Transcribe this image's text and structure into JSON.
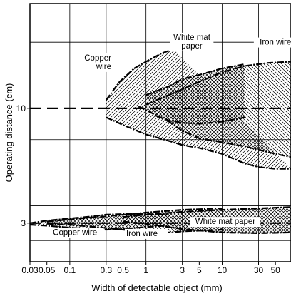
{
  "chart_data": {
    "type": "area",
    "title": "",
    "xlabel": "Width of detectable object (mm)",
    "ylabel": "Operating distance (cm)",
    "x_scale": "log",
    "y_scale": "log",
    "xlim": [
      0.03,
      80
    ],
    "ylim": [
      2,
      30
    ],
    "grid": true,
    "x_ticks": [
      {
        "value": 0.03,
        "label": "0.03"
      },
      {
        "value": 0.05,
        "label": "0.05"
      },
      {
        "value": 0.1,
        "label": "0.1"
      },
      {
        "value": 0.3,
        "label": "0.3"
      },
      {
        "value": 0.5,
        "label": "0.5"
      },
      {
        "value": 1,
        "label": "1"
      },
      {
        "value": 3,
        "label": "3"
      },
      {
        "value": 5,
        "label": "5"
      },
      {
        "value": 10,
        "label": "10"
      },
      {
        "value": 30,
        "label": "30"
      },
      {
        "value": 50,
        "label": "50"
      }
    ],
    "y_ticks": [
      {
        "value": 3,
        "label": "3"
      },
      {
        "value": 10,
        "label": "10"
      }
    ],
    "x_gridlines": [
      0.03,
      0.1,
      0.3,
      1,
      3,
      10,
      30
    ],
    "y_gridlines": [
      2.5,
      3.6,
      7.2,
      20
    ],
    "reference_lines": [
      {
        "y": 10,
        "style": "dashed"
      },
      {
        "y": 3,
        "style": "dashed"
      }
    ],
    "series": [
      {
        "name": "Copper wire",
        "label": "Copper\nwire",
        "label_at": [
          0.35,
          16.5
        ],
        "label_anchor": "end",
        "hatch": "forward",
        "upper": [
          [
            0.3,
            10.9
          ],
          [
            0.45,
            13.2
          ],
          [
            0.7,
            15.2
          ],
          [
            1,
            16.3
          ],
          [
            1.6,
            17.8
          ],
          [
            2.3,
            18.6
          ]
        ],
        "lower": [
          [
            0.3,
            9.1
          ],
          [
            0.5,
            8.4
          ],
          [
            1,
            7.6
          ],
          [
            2,
            7.1
          ],
          [
            3,
            6.8
          ],
          [
            5,
            6.6
          ],
          [
            10,
            6.2
          ],
          [
            20,
            5.6
          ],
          [
            30,
            5.4
          ],
          [
            50,
            5.3
          ],
          [
            80,
            5.3
          ]
        ]
      },
      {
        "name": "White mat paper",
        "label": "White mat\npaper",
        "label_at": [
          4,
          20.5
        ],
        "label_anchor": "middle",
        "hatch": "cross",
        "upper": [
          [
            1,
            11.5
          ],
          [
            2,
            12.6
          ],
          [
            3,
            13.6
          ],
          [
            5,
            14.2
          ],
          [
            10,
            15.2
          ],
          [
            20,
            15.9
          ]
        ],
        "lower": [
          [
            1.3,
            9.3
          ],
          [
            2,
            8.8
          ],
          [
            3,
            8.6
          ],
          [
            5,
            8.5
          ],
          [
            10,
            8.7
          ],
          [
            20,
            9.1
          ]
        ]
      },
      {
        "name": "Iron wire",
        "label": "Iron wire",
        "label_at": [
          50,
          19.5
        ],
        "label_anchor": "middle",
        "hatch": "back",
        "upper": [
          [
            1,
            10.4
          ],
          [
            3,
            12.2
          ],
          [
            5,
            13.2
          ],
          [
            10,
            14.6
          ],
          [
            20,
            15.6
          ],
          [
            40,
            16.1
          ],
          [
            80,
            16.3
          ]
        ],
        "lower": [
          [
            0.8,
            10.2
          ],
          [
            2,
            8.7
          ],
          [
            3,
            7.9
          ],
          [
            5,
            7.3
          ],
          [
            10,
            7.0
          ],
          [
            20,
            6.7
          ],
          [
            50,
            6.2
          ],
          [
            80,
            6.0
          ]
        ]
      },
      {
        "name": "Copper wire",
        "label": "Copper wire",
        "label_at": [
          0.06,
          2.65
        ],
        "label_anchor": "start",
        "hatch": "forward",
        "upper": [
          [
            0.03,
            3.0
          ],
          [
            0.05,
            3.08
          ],
          [
            0.1,
            3.15
          ],
          [
            0.2,
            3.22
          ],
          [
            0.3,
            3.28
          ],
          [
            0.5,
            3.3
          ],
          [
            1,
            3.3
          ],
          [
            2,
            3.28
          ]
        ],
        "lower": [
          [
            0.03,
            2.95
          ],
          [
            0.05,
            2.92
          ],
          [
            0.1,
            2.86
          ],
          [
            0.2,
            2.82
          ],
          [
            0.3,
            2.8
          ],
          [
            0.5,
            2.82
          ],
          [
            1,
            2.88
          ],
          [
            2,
            2.93
          ]
        ]
      },
      {
        "name": "Iron wire",
        "label": "Iron wire",
        "label_at": [
          0.55,
          2.62
        ],
        "label_anchor": "start",
        "hatch": "back",
        "upper": [
          [
            0.05,
            3.05
          ],
          [
            0.1,
            3.12
          ],
          [
            0.3,
            3.22
          ],
          [
            1,
            3.35
          ],
          [
            3,
            3.45
          ],
          [
            10,
            3.5
          ]
        ],
        "lower": [
          [
            0.05,
            2.98
          ],
          [
            0.1,
            2.95
          ],
          [
            0.3,
            2.85
          ],
          [
            0.5,
            2.8
          ],
          [
            1,
            2.75
          ],
          [
            2,
            2.72
          ],
          [
            3,
            2.75
          ],
          [
            10,
            2.8
          ]
        ]
      },
      {
        "name": "White mat paper",
        "label": "White mat paper",
        "label_at": [
          11,
          2.97
        ],
        "label_anchor": "middle",
        "hatch": "cross",
        "upper": [
          [
            0.5,
            3.2
          ],
          [
            1,
            3.28
          ],
          [
            3,
            3.38
          ],
          [
            10,
            3.45
          ],
          [
            30,
            3.5
          ],
          [
            80,
            3.55
          ]
        ],
        "lower": [
          [
            0.5,
            3.05
          ],
          [
            1,
            2.98
          ],
          [
            3,
            2.82
          ],
          [
            10,
            2.72
          ],
          [
            30,
            2.7
          ],
          [
            80,
            2.72
          ]
        ]
      }
    ]
  }
}
